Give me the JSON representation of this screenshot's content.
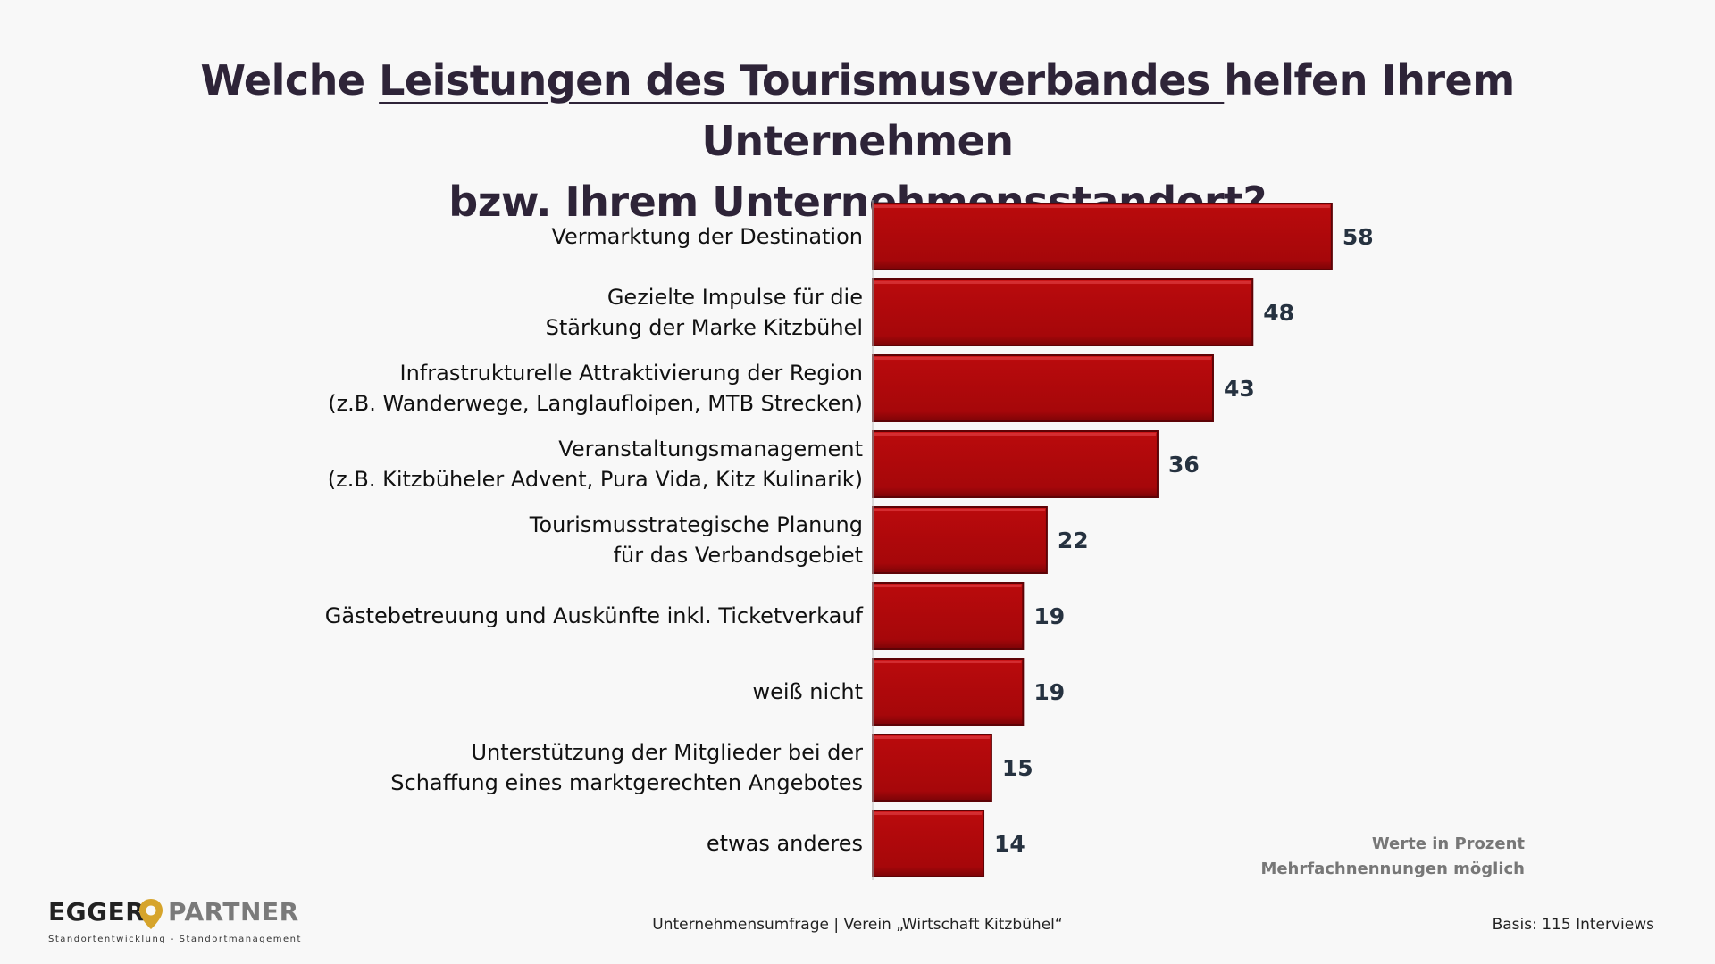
{
  "title": {
    "before": "Welche ",
    "underlined": "Leistungen des Tourismusverbandes ",
    "after": "helfen Ihrem Unternehmen",
    "line2": "bzw. Ihrem Unternehmensstandort?"
  },
  "chart_data": {
    "type": "bar",
    "orientation": "horizontal",
    "categories": [
      [
        "Vermarktung der Destination"
      ],
      [
        "Gezielte Impulse für die",
        "Stärkung der Marke Kitzbühel"
      ],
      [
        "Infrastrukturelle Attraktivierung der Region",
        "(z.B. Wanderwege, Langlaufloipen, MTB Strecken)"
      ],
      [
        "Veranstaltungsmanagement",
        "(z.B. Kitzbüheler Advent, Pura Vida, Kitz Kulinarik)"
      ],
      [
        "Tourismusstrategische Planung",
        "für das Verbandsgebiet"
      ],
      [
        "Gästebetreuung und Auskünfte inkl. Ticketverkauf"
      ],
      [
        "weiß nicht"
      ],
      [
        "Unterstützung der Mitglieder bei der",
        "Schaffung eines marktgerechten Angebotes"
      ],
      [
        "etwas anderes"
      ]
    ],
    "values": [
      58,
      48,
      43,
      36,
      22,
      19,
      19,
      15,
      14
    ],
    "xlim": [
      0,
      100
    ],
    "unit": "Prozent",
    "bar_color": "#b0080a",
    "grid": false,
    "legend": "none"
  },
  "notes": {
    "line1": "Werte in Prozent",
    "line2": "Mehrfachnennungen möglich"
  },
  "footer": {
    "logo_left": "EGGER",
    "logo_right": "PARTNER",
    "logo_icon": "map-pin-icon",
    "tagline": "Standortentwicklung - Standortmanagement",
    "center": "Unternehmensumfrage | Verein „Wirtschaft Kitzbühel“",
    "right": "Basis: 115 Interviews"
  },
  "colors": {
    "title": "#2e2438",
    "bar": "#b0080a",
    "bar_dark": "#5e0306",
    "value_label": "#263240",
    "note": "#777777",
    "logo_pin": "#d6a42b"
  }
}
